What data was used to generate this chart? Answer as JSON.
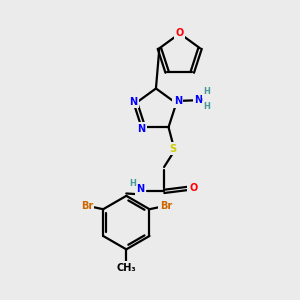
{
  "bg_color": "#ebebeb",
  "atom_colors": {
    "C": "#000000",
    "N": "#0000ff",
    "O": "#ff0000",
    "S": "#cccc00",
    "Br": "#cc6600",
    "H": "#4a9999"
  }
}
